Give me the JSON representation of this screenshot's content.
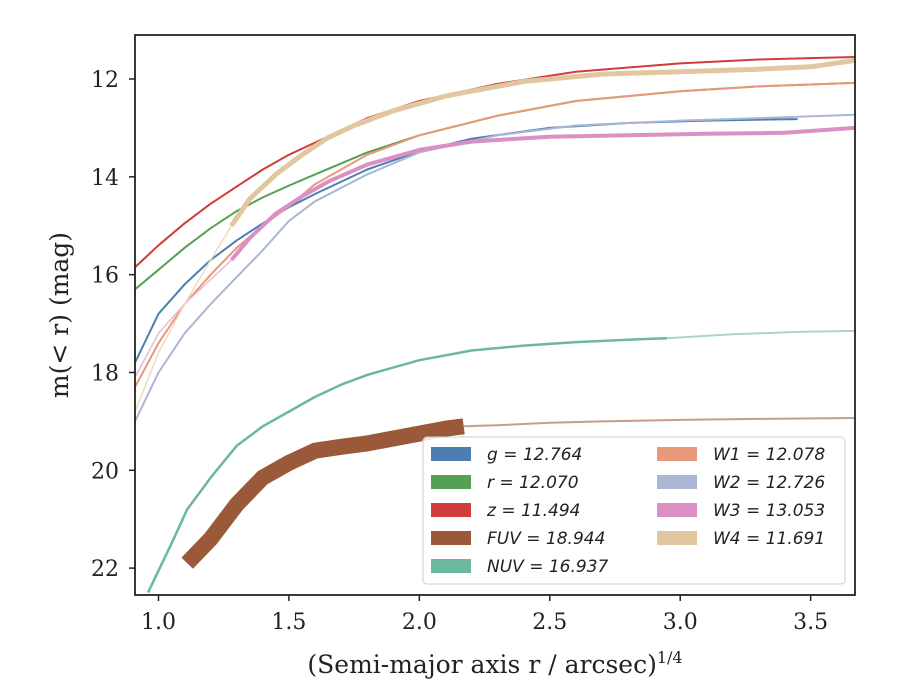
{
  "chart_data": {
    "type": "line",
    "title": "",
    "xlabel_main": "(Semi-major axis r / arcsec)",
    "xlabel_sup": "1/4",
    "ylabel": "m(< r) (mag)",
    "xlim": [
      0.91,
      3.67
    ],
    "ylim": [
      22.55,
      11.1
    ],
    "y_inverted": true,
    "grid": false,
    "legend_position": "lower-right",
    "xticks": [
      1.0,
      1.5,
      2.0,
      2.5,
      3.0,
      3.5
    ],
    "xtick_labels": [
      "1.0",
      "1.5",
      "2.0",
      "2.5",
      "3.0",
      "3.5"
    ],
    "yticks": [
      12,
      14,
      16,
      18,
      20,
      22
    ],
    "ytick_labels": [
      "12",
      "14",
      "16",
      "18",
      "20",
      "22"
    ],
    "series": [
      {
        "name": "g",
        "legend": "g = 12.764",
        "color": "#4c7fb0",
        "width": 2,
        "x": [
          0.91,
          1.0,
          1.1,
          1.2,
          1.3,
          1.4,
          1.5,
          1.6,
          1.8,
          2.0,
          2.2,
          2.5,
          2.8,
          3.1,
          3.45
        ],
        "y": [
          17.8,
          16.8,
          16.2,
          15.7,
          15.3,
          14.95,
          14.62,
          14.35,
          13.85,
          13.48,
          13.22,
          13.0,
          12.9,
          12.85,
          12.82
        ]
      },
      {
        "name": "r",
        "legend": "r = 12.070",
        "color": "#55a055",
        "width": 2,
        "x": [
          0.91,
          1.0,
          1.1,
          1.2,
          1.3,
          1.4,
          1.5,
          1.6,
          1.8,
          2.0,
          2.3,
          2.6,
          3.0,
          3.3,
          3.67
        ],
        "y": [
          16.3,
          15.9,
          15.45,
          15.05,
          14.7,
          14.42,
          14.18,
          13.95,
          13.5,
          13.15,
          12.75,
          12.45,
          12.25,
          12.15,
          12.08
        ]
      },
      {
        "name": "z",
        "legend": "z = 11.494",
        "color": "#d03c3c",
        "width": 2,
        "x": [
          0.91,
          1.0,
          1.1,
          1.2,
          1.3,
          1.4,
          1.5,
          1.6,
          1.8,
          2.0,
          2.3,
          2.6,
          3.0,
          3.3,
          3.67
        ],
        "y": [
          15.85,
          15.4,
          14.95,
          14.55,
          14.2,
          13.85,
          13.55,
          13.3,
          12.8,
          12.45,
          12.1,
          11.85,
          11.68,
          11.6,
          11.55
        ]
      },
      {
        "name": "FUV",
        "legend": "FUV = 18.944",
        "color": "#9a5a3a",
        "width": 16,
        "x": [
          1.11,
          1.2,
          1.3,
          1.4,
          1.5,
          1.6,
          1.7,
          1.8,
          1.9,
          2.0,
          2.1,
          2.17
        ],
        "y": [
          21.9,
          21.4,
          20.7,
          20.15,
          19.85,
          19.6,
          19.52,
          19.45,
          19.35,
          19.25,
          19.15,
          19.1
        ]
      },
      {
        "name": "FUV-extension",
        "color": "#c4a08a",
        "width": 2,
        "x": [
          2.17,
          2.3,
          2.5,
          2.7,
          3.0,
          3.3,
          3.67
        ],
        "y": [
          19.1,
          19.08,
          19.03,
          19.0,
          18.97,
          18.95,
          18.93
        ]
      },
      {
        "name": "NUV",
        "legend": "NUV = 16.937",
        "color": "#6bb89e",
        "width": 2.5,
        "x": [
          0.96,
          1.05,
          1.11,
          1.2,
          1.3,
          1.4,
          1.5,
          1.6,
          1.7,
          1.8,
          2.0,
          2.2,
          2.4,
          2.6,
          2.8,
          2.95
        ],
        "y": [
          22.5,
          21.5,
          20.8,
          20.15,
          19.5,
          19.1,
          18.8,
          18.5,
          18.25,
          18.05,
          17.75,
          17.55,
          17.45,
          17.38,
          17.33,
          17.3
        ]
      },
      {
        "name": "NUV-extension",
        "color": "#a9d6c5",
        "width": 2,
        "x": [
          2.95,
          3.2,
          3.45,
          3.67
        ],
        "y": [
          17.3,
          17.22,
          17.17,
          17.15
        ]
      },
      {
        "name": "W1",
        "legend": "W1 = 12.078",
        "color": "#e9997a",
        "width": 2,
        "x": [
          0.91,
          1.0,
          1.1,
          1.2,
          1.3,
          1.4,
          1.5,
          1.6,
          1.8,
          2.0,
          2.3,
          2.6,
          3.0,
          3.3,
          3.67
        ],
        "y": [
          18.3,
          17.4,
          16.6,
          16.0,
          15.45,
          15.0,
          14.6,
          14.15,
          13.55,
          13.15,
          12.75,
          12.45,
          12.25,
          12.15,
          12.08
        ]
      },
      {
        "name": "W2",
        "legend": "W2 = 12.726",
        "color": "#aab6d4",
        "width": 2,
        "x": [
          0.91,
          1.0,
          1.1,
          1.2,
          1.3,
          1.4,
          1.5,
          1.6,
          1.8,
          2.0,
          2.3,
          2.6,
          3.0,
          3.3,
          3.67
        ],
        "y": [
          19.0,
          18.0,
          17.2,
          16.6,
          16.05,
          15.5,
          14.9,
          14.5,
          13.95,
          13.5,
          13.15,
          12.95,
          12.85,
          12.8,
          12.73
        ]
      },
      {
        "name": "W3",
        "legend": "W3 = 13.053",
        "color": "#db8fc4",
        "width": 4,
        "x": [
          1.28,
          1.35,
          1.45,
          1.55,
          1.65,
          1.8,
          2.0,
          2.2,
          2.5,
          2.8,
          3.1,
          3.4,
          3.67
        ],
        "y": [
          15.7,
          15.25,
          14.75,
          14.4,
          14.1,
          13.75,
          13.45,
          13.28,
          13.18,
          13.15,
          13.12,
          13.1,
          13.0
        ]
      },
      {
        "name": "W3-thin",
        "color": "#e8b8d8",
        "width": 1.5,
        "x": [
          0.91,
          1.0,
          1.1,
          1.2,
          1.28
        ],
        "y": [
          18.1,
          17.2,
          16.6,
          16.1,
          15.7
        ]
      },
      {
        "name": "W4",
        "legend": "W4 = 11.691",
        "color": "#e0c7a0",
        "width": 5,
        "x": [
          1.28,
          1.35,
          1.45,
          1.55,
          1.65,
          1.75,
          1.9,
          2.1,
          2.4,
          2.7,
          3.0,
          3.3,
          3.5,
          3.67
        ],
        "y": [
          15.0,
          14.45,
          13.95,
          13.55,
          13.2,
          12.95,
          12.65,
          12.35,
          12.05,
          11.9,
          11.85,
          11.8,
          11.75,
          11.62
        ]
      },
      {
        "name": "W4-thin",
        "color": "#ecdcc0",
        "width": 1.5,
        "x": [
          0.91,
          1.0,
          1.1,
          1.2,
          1.28
        ],
        "y": [
          18.8,
          17.6,
          16.6,
          15.7,
          15.0
        ]
      }
    ],
    "legend_left": [
      "g = 12.764",
      "r = 12.070",
      "z = 11.494",
      "FUV = 18.944",
      "NUV = 16.937"
    ],
    "legend_right": [
      "W1 = 12.078",
      "W2 = 12.726",
      "W3 = 13.053",
      "W4 = 11.691"
    ],
    "legend_left_colors": [
      "#4c7fb0",
      "#55a055",
      "#d03c3c",
      "#9a5a3a",
      "#6bb89e"
    ],
    "legend_right_colors": [
      "#e9997a",
      "#aab6d4",
      "#db8fc4",
      "#e0c7a0"
    ]
  }
}
